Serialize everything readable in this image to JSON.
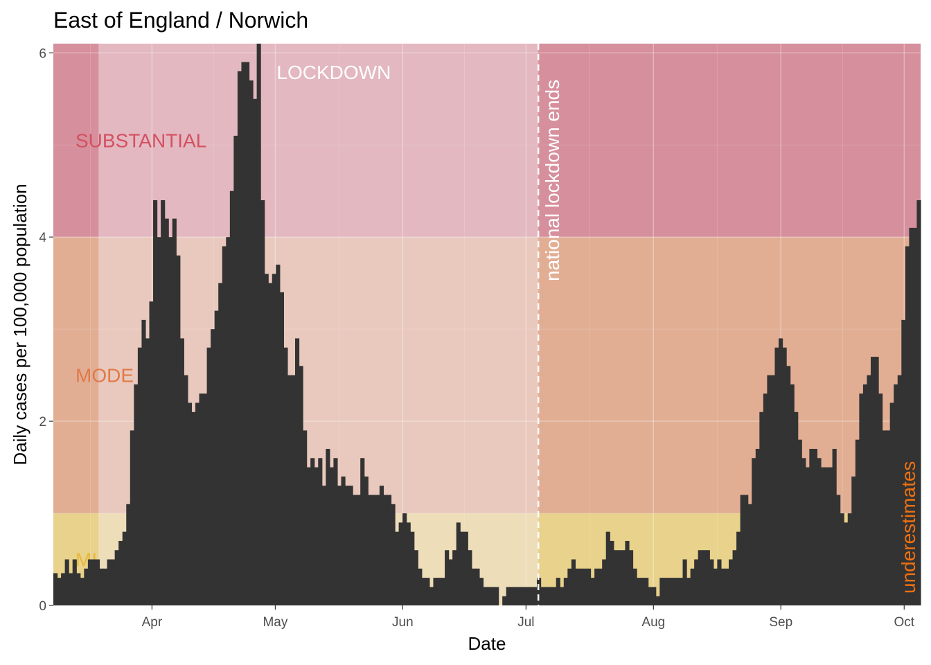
{
  "chart_data": {
    "type": "bar",
    "title": "East of England / Norwich",
    "xlabel": "Date",
    "ylabel": "Daily cases per 100,000 population",
    "x_start": "2020-03-08",
    "x_end": "2020-10-05",
    "ylim": [
      0,
      6.1
    ],
    "y_ticks": [
      0,
      2,
      4,
      6
    ],
    "x_ticks": [
      {
        "date": "2020-04-01",
        "label": "Apr"
      },
      {
        "date": "2020-05-01",
        "label": "May"
      },
      {
        "date": "2020-06-01",
        "label": "Jun"
      },
      {
        "date": "2020-07-01",
        "label": "Jul"
      },
      {
        "date": "2020-08-01",
        "label": "Aug"
      },
      {
        "date": "2020-09-01",
        "label": "Sep"
      },
      {
        "date": "2020-10-01",
        "label": "Oct"
      }
    ],
    "zones": [
      {
        "label": "MINIMAL",
        "from": 0,
        "to": 1,
        "fill": "#e8d28c",
        "text_color": "#e8b83a",
        "visible_text": "MI"
      },
      {
        "label": "MODERATE",
        "from": 1,
        "to": 4,
        "fill": "#e1ae94",
        "text_color": "#e07a48",
        "visible_text": "MODE"
      },
      {
        "label": "SUBSTANTIAL",
        "from": 4,
        "to": 6.1,
        "fill": "#d68f9c",
        "text_color": "#d45060",
        "visible_text": "SUBSTANTIAL"
      }
    ],
    "lockdown": {
      "label": "LOCKDOWN",
      "start": "2020-03-19",
      "end": "2020-07-04",
      "fill": "#f5eaf0"
    },
    "lockdown_end_line": {
      "date": "2020-07-04",
      "label": "national lockdown ends"
    },
    "underestimates_label": {
      "text": "underestimates",
      "color": "#f07010"
    },
    "series": [
      {
        "name": "Norwich",
        "color": "#333333",
        "values": [
          0.35,
          0.3,
          0.35,
          0.5,
          0.35,
          0.5,
          0.35,
          0.3,
          0.4,
          0.5,
          0.5,
          0.5,
          0.4,
          0.4,
          0.5,
          0.5,
          0.6,
          0.7,
          0.8,
          1.1,
          1.9,
          2.4,
          2.8,
          3.1,
          2.9,
          3.3,
          4.4,
          4.0,
          4.4,
          4.2,
          4.0,
          4.2,
          3.8,
          2.9,
          2.5,
          2.2,
          2.1,
          2.2,
          2.3,
          2.3,
          2.8,
          3.0,
          3.2,
          3.5,
          3.9,
          4.0,
          4.5,
          5.1,
          5.8,
          5.9,
          5.9,
          5.7,
          5.5,
          6.1,
          4.4,
          3.6,
          3.5,
          3.6,
          3.7,
          3.4,
          2.8,
          2.5,
          2.5,
          2.9,
          2.6,
          1.9,
          1.5,
          1.6,
          1.5,
          1.6,
          1.3,
          1.7,
          1.5,
          1.6,
          1.3,
          1.4,
          1.3,
          1.3,
          1.2,
          1.2,
          1.6,
          1.4,
          1.2,
          1.2,
          1.2,
          1.3,
          1.2,
          1.2,
          1.1,
          0.8,
          0.9,
          1.0,
          0.9,
          0.8,
          0.6,
          0.4,
          0.3,
          0.3,
          0.2,
          0.3,
          0.3,
          0.3,
          0.6,
          0.5,
          0.6,
          0.9,
          0.8,
          0.8,
          0.6,
          0.4,
          0.4,
          0.3,
          0.2,
          0.2,
          0.2,
          0.2,
          0.0,
          0.1,
          0.2,
          0.2,
          0.2,
          0.2,
          0.2,
          0.2,
          0.2,
          0.2,
          0.3,
          0.2,
          0.2,
          0.2,
          0.2,
          0.3,
          0.2,
          0.3,
          0.4,
          0.5,
          0.4,
          0.4,
          0.4,
          0.4,
          0.3,
          0.4,
          0.4,
          0.5,
          0.8,
          0.7,
          0.6,
          0.6,
          0.6,
          0.7,
          0.6,
          0.4,
          0.3,
          0.3,
          0.3,
          0.2,
          0.2,
          0.1,
          0.3,
          0.3,
          0.3,
          0.3,
          0.3,
          0.3,
          0.5,
          0.3,
          0.4,
          0.5,
          0.6,
          0.6,
          0.6,
          0.5,
          0.4,
          0.5,
          0.4,
          0.4,
          0.5,
          0.6,
          0.8,
          1.2,
          1.2,
          1.1,
          1.6,
          1.7,
          2.1,
          2.3,
          2.5,
          2.5,
          2.8,
          2.9,
          2.8,
          2.6,
          2.4,
          2.1,
          1.8,
          1.6,
          1.5,
          1.7,
          1.7,
          1.6,
          1.5,
          1.5,
          1.5,
          1.7,
          1.2,
          1.0,
          0.9,
          1.0,
          1.4,
          1.8,
          2.3,
          2.4,
          2.5,
          2.7,
          2.7,
          2.3,
          1.9,
          1.9,
          2.2,
          2.4,
          2.5,
          3.1,
          3.9,
          4.1,
          4.1,
          4.4
        ]
      }
    ]
  }
}
